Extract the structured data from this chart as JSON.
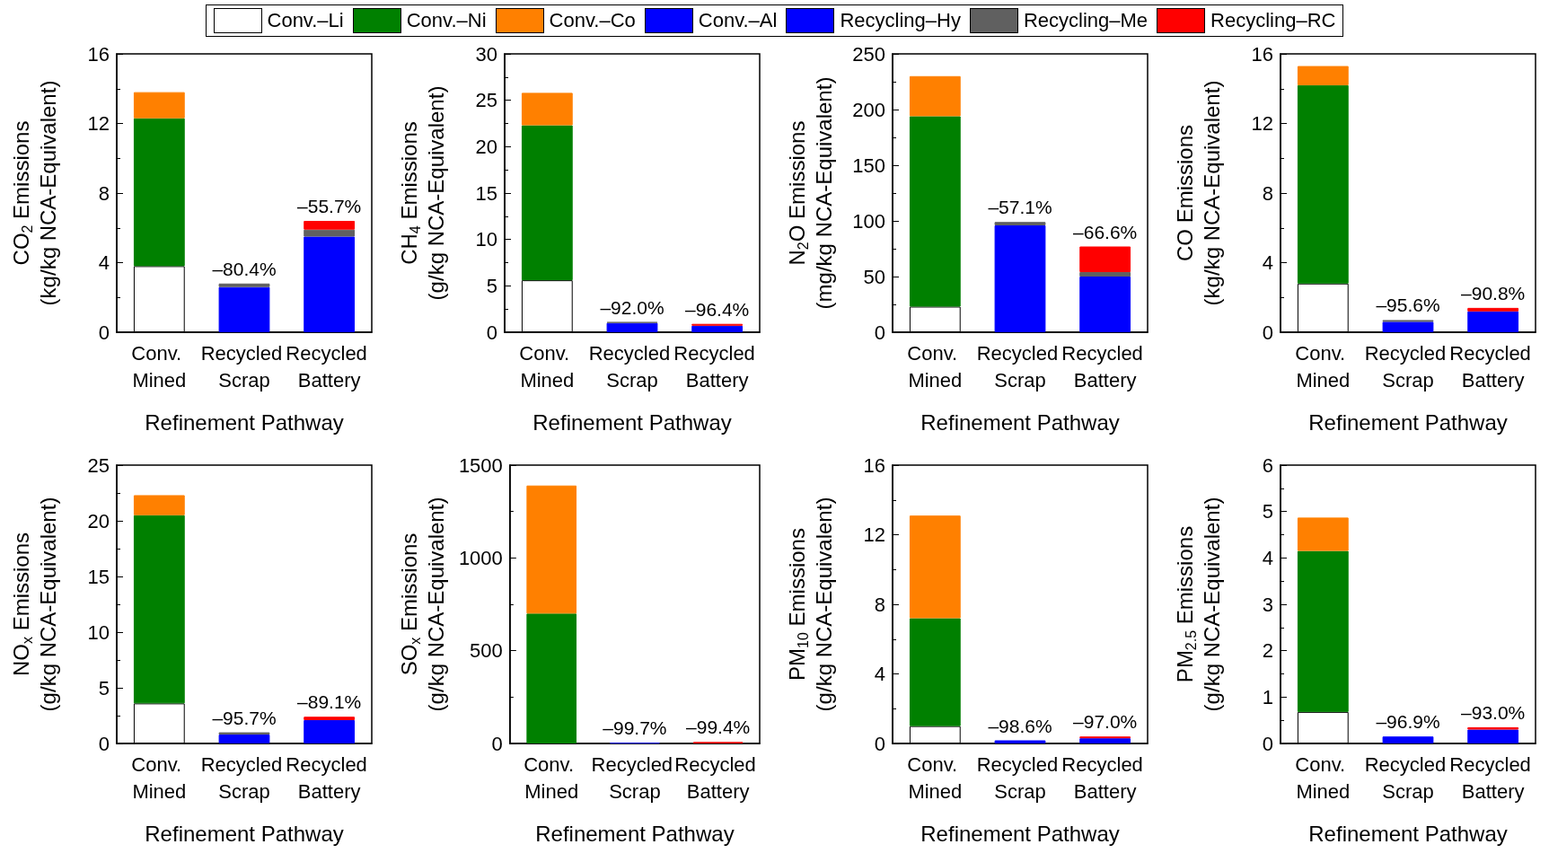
{
  "chart_data": [
    {
      "type": "bar",
      "stacked": true,
      "legend": "top",
      "ylabel": "CO$_{2}$ Emissions\n(kg/kg NCA-Equivalent)",
      "xlabel": "Refinement Pathway",
      "categories": [
        "Conv. Mined",
        "Recycled Scrap",
        "Recycled Battery"
      ],
      "ylim": [
        0,
        16
      ],
      "yticks": [
        0,
        4,
        8,
        12,
        16
      ],
      "series": [
        {
          "name": "Conv.–Li",
          "color": "#ffffff",
          "values": [
            3.8,
            null,
            null
          ]
        },
        {
          "name": "Conv.–Ni",
          "color": "#008000",
          "values": [
            8.5,
            null,
            null
          ]
        },
        {
          "name": "Conv.–Co",
          "color": "#ff8000",
          "values": [
            1.5,
            null,
            null
          ]
        },
        {
          "name": "Conv.–Al",
          "color": "#0000ff",
          "values": [
            null,
            null,
            null
          ]
        },
        {
          "name": "Recycling–Hy",
          "color": "#0000ff",
          "values": [
            null,
            2.6,
            5.5
          ]
        },
        {
          "name": "Recycling–Me",
          "color": "#606060",
          "values": [
            null,
            0.2,
            0.4
          ]
        },
        {
          "name": "Recycling–RC",
          "color": "#ff0000",
          "values": [
            null,
            null,
            0.5
          ]
        }
      ],
      "annotations": [
        {
          "text": "–80.4%",
          "x": "Recycled Scrap",
          "y": 2.8
        },
        {
          "text": "–55.7%",
          "x": "Recycled Battery",
          "y": 6.4
        }
      ]
    },
    {
      "type": "bar",
      "stacked": true,
      "ylabel": "CH$_{4}$ Emissions\n(g/kg NCA-Equivalent)",
      "xlabel": "Refinement Pathway",
      "categories": [
        "Conv. Mined",
        "Recycled Scrap",
        "Recycled Battery"
      ],
      "ylim": [
        0,
        30
      ],
      "yticks": [
        0,
        5,
        10,
        15,
        20,
        25,
        30
      ],
      "series": [
        {
          "color": "#ffffff",
          "values": [
            5.6,
            null,
            null
          ]
        },
        {
          "color": "#008000",
          "values": [
            16.7,
            null,
            null
          ]
        },
        {
          "color": "#ff8000",
          "values": [
            3.5,
            null,
            null
          ]
        },
        {
          "color": "#0000ff",
          "values": [
            null,
            1.0,
            0.7
          ]
        },
        {
          "color": "#606060",
          "values": [
            null,
            0.1,
            null
          ]
        },
        {
          "color": "#ff0000",
          "values": [
            null,
            null,
            0.2
          ]
        }
      ],
      "annotations": [
        {
          "text": "–92.0%",
          "x": "Recycled Scrap",
          "y": 1.1
        },
        {
          "text": "–96.4%",
          "x": "Recycled Battery",
          "y": 0.9
        }
      ]
    },
    {
      "type": "bar",
      "stacked": true,
      "ylabel": "N$_{2}$O Emissions\n(mg/kg NCA-Equivalent)",
      "xlabel": "Refinement Pathway",
      "categories": [
        "Conv. Mined",
        "Recycled Scrap",
        "Recycled Battery"
      ],
      "ylim": [
        0,
        250
      ],
      "yticks": [
        0,
        50,
        100,
        150,
        200,
        250
      ],
      "series": [
        {
          "color": "#ffffff",
          "values": [
            23,
            null,
            null
          ]
        },
        {
          "color": "#008000",
          "values": [
            171,
            null,
            null
          ]
        },
        {
          "color": "#ff8000",
          "values": [
            36,
            null,
            null
          ]
        },
        {
          "color": "#0000ff",
          "values": [
            null,
            96,
            50
          ]
        },
        {
          "color": "#606060",
          "values": [
            null,
            3,
            4
          ]
        },
        {
          "color": "#ff0000",
          "values": [
            null,
            null,
            23
          ]
        }
      ],
      "annotations": [
        {
          "text": "–57.1%",
          "x": "Recycled Scrap",
          "y": 99
        },
        {
          "text": "–66.6%",
          "x": "Recycled Battery",
          "y": 77
        }
      ]
    },
    {
      "type": "bar",
      "stacked": true,
      "ylabel": "CO Emissions\n(kg/kg NCA-Equivalent)",
      "xlabel": "Refinement Pathway",
      "categories": [
        "Conv. Mined",
        "Recycled Scrap",
        "Recycled Battery"
      ],
      "ylim": [
        0,
        16
      ],
      "yticks": [
        0,
        4,
        8,
        12,
        16
      ],
      "series": [
        {
          "color": "#ffffff",
          "values": [
            2.8,
            null,
            null
          ]
        },
        {
          "color": "#008000",
          "values": [
            11.4,
            null,
            null
          ]
        },
        {
          "color": "#ff8000",
          "values": [
            1.1,
            null,
            null
          ]
        },
        {
          "color": "#0000ff",
          "values": [
            null,
            0.6,
            1.2
          ]
        },
        {
          "color": "#606060",
          "values": [
            null,
            0.1,
            null
          ]
        },
        {
          "color": "#ff0000",
          "values": [
            null,
            null,
            0.2
          ]
        }
      ],
      "annotations": [
        {
          "text": "–95.6%",
          "x": "Recycled Scrap",
          "y": 0.7
        },
        {
          "text": "–90.8%",
          "x": "Recycled Battery",
          "y": 1.4
        }
      ]
    },
    {
      "type": "bar",
      "stacked": true,
      "ylabel": "NO$_{x}$ Emissions\n(g/kg NCA-Equivalent)",
      "xlabel": "Refinement Pathway",
      "categories": [
        "Conv. Mined",
        "Recycled Scrap",
        "Recycled Battery"
      ],
      "ylim": [
        0,
        25
      ],
      "yticks": [
        0,
        5,
        10,
        15,
        20,
        25
      ],
      "series": [
        {
          "color": "#ffffff",
          "values": [
            3.6,
            null,
            null
          ]
        },
        {
          "color": "#008000",
          "values": [
            16.9,
            null,
            null
          ]
        },
        {
          "color": "#ff8000",
          "values": [
            1.8,
            null,
            null
          ]
        },
        {
          "color": "#0000ff",
          "values": [
            null,
            0.8,
            2.1
          ]
        },
        {
          "color": "#606060",
          "values": [
            null,
            0.2,
            null
          ]
        },
        {
          "color": "#ff0000",
          "values": [
            null,
            null,
            0.3
          ]
        }
      ],
      "annotations": [
        {
          "text": "–95.7%",
          "x": "Recycled Scrap",
          "y": 0.95
        },
        {
          "text": "–89.1%",
          "x": "Recycled Battery",
          "y": 2.4
        }
      ]
    },
    {
      "type": "bar",
      "stacked": true,
      "ylabel": "SO$_{x}$ Emissions\n(g/kg NCA-Equivalent)",
      "xlabel": "Refinement Pathway",
      "categories": [
        "Conv. Mined",
        "Recycled Scrap",
        "Recycled Battery"
      ],
      "ylim": [
        0,
        1500
      ],
      "yticks": [
        0,
        500,
        {
          "value": 1000,
          "label": "1000"
        },
        {
          "value": 1500,
          "label": "1500"
        }
      ],
      "series": [
        {
          "color": "#008000",
          "values": [
            700,
            null,
            null
          ]
        },
        {
          "color": "#ff8000",
          "values": [
            690,
            null,
            null
          ]
        },
        {
          "color": "#0000ff",
          "values": [
            null,
            4,
            null
          ]
        },
        {
          "color": "#ff0000",
          "values": [
            null,
            null,
            8
          ]
        }
      ],
      "annotations": [
        {
          "text": "–99.7%",
          "x": "Recycled Scrap",
          "y": 4
        },
        {
          "text": "–99.4%",
          "x": "Recycled Battery",
          "y": 8
        }
      ]
    },
    {
      "type": "bar",
      "stacked": true,
      "ylabel": "PM$_{10}$ Emissions\n(g/kg NCA-Equivalent)",
      "xlabel": "Refinement Pathway",
      "categories": [
        "Conv. Mined",
        "Recycled Scrap",
        "Recycled Battery"
      ],
      "ylim": [
        0,
        16
      ],
      "yticks": [
        0,
        4,
        8,
        12,
        16
      ],
      "series": [
        {
          "color": "#ffffff",
          "values": [
            1.0,
            null,
            null
          ]
        },
        {
          "color": "#008000",
          "values": [
            6.2,
            null,
            null
          ]
        },
        {
          "color": "#ff8000",
          "values": [
            5.9,
            null,
            null
          ]
        },
        {
          "color": "#0000ff",
          "values": [
            null,
            0.18,
            0.3
          ]
        },
        {
          "color": "#ff0000",
          "values": [
            null,
            null,
            0.1
          ]
        }
      ],
      "annotations": [
        {
          "text": "–98.6%",
          "x": "Recycled Scrap",
          "y": 0.18
        },
        {
          "text": "–97.0%",
          "x": "Recycled Battery",
          "y": 0.4
        }
      ]
    },
    {
      "type": "bar",
      "stacked": true,
      "ylabel": "PM$_{2.5}$ Emissions\n(g/kg NCA-Equivalent)",
      "xlabel": "Refinement Pathway",
      "categories": [
        "Conv. Mined",
        "Recycled Scrap",
        "Recycled Battery"
      ],
      "ylim": [
        0,
        6
      ],
      "yticks": [
        0,
        1,
        2,
        3,
        4,
        5,
        6
      ],
      "series": [
        {
          "color": "#ffffff",
          "values": [
            0.68,
            null,
            null
          ]
        },
        {
          "color": "#008000",
          "values": [
            3.47,
            null,
            null
          ]
        },
        {
          "color": "#ff8000",
          "values": [
            0.72,
            null,
            null
          ]
        },
        {
          "color": "#0000ff",
          "values": [
            null,
            0.15,
            0.3
          ]
        },
        {
          "color": "#ff0000",
          "values": [
            null,
            null,
            0.05
          ]
        }
      ],
      "annotations": [
        {
          "text": "–96.9%",
          "x": "Recycled Scrap",
          "y": 0.15
        },
        {
          "text": "–93.0%",
          "x": "Recycled Battery",
          "y": 0.35
        }
      ]
    }
  ]
}
